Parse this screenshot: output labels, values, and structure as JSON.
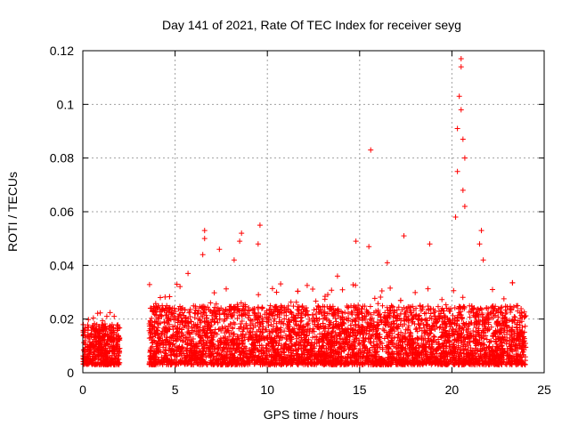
{
  "chart_data": {
    "type": "scatter",
    "title": "Day 141 of 2021, Rate Of TEC Index for receiver seyg",
    "xlabel": "GPS time / hours",
    "ylabel": "ROTI / TECUs",
    "xlim": [
      0,
      25
    ],
    "ylim": [
      0,
      0.12
    ],
    "xticks": [
      0,
      5,
      10,
      15,
      20,
      25
    ],
    "xtick_labels": [
      "0",
      "5",
      "10",
      "15",
      "20",
      "25"
    ],
    "yticks": [
      0,
      0.02,
      0.04,
      0.06,
      0.08,
      0.1,
      0.12
    ],
    "ytick_labels": [
      "0",
      "0.02",
      "0.04",
      "0.06",
      "0.08",
      "0.1",
      "0.12"
    ],
    "grid": true,
    "marker": "+",
    "color": "#ff0000",
    "data_gap_hours": [
      2.0,
      3.6
    ],
    "segments": [
      {
        "x_start": 0.0,
        "x_end": 2.0,
        "band": [
          0.003,
          0.018
        ]
      },
      {
        "x_start": 3.6,
        "x_end": 24.0,
        "band": [
          0.003,
          0.025
        ]
      }
    ],
    "notable_points": [
      {
        "x": 0.1,
        "y": 0.015
      },
      {
        "x": 1.3,
        "y": 0.021
      },
      {
        "x": 1.7,
        "y": 0.021
      },
      {
        "x": 4.2,
        "y": 0.028
      },
      {
        "x": 5.1,
        "y": 0.033
      },
      {
        "x": 5.7,
        "y": 0.037
      },
      {
        "x": 6.6,
        "y": 0.053
      },
      {
        "x": 6.6,
        "y": 0.05
      },
      {
        "x": 6.5,
        "y": 0.044
      },
      {
        "x": 7.4,
        "y": 0.046
      },
      {
        "x": 8.6,
        "y": 0.052
      },
      {
        "x": 8.5,
        "y": 0.049
      },
      {
        "x": 8.2,
        "y": 0.042
      },
      {
        "x": 9.6,
        "y": 0.055
      },
      {
        "x": 9.5,
        "y": 0.048
      },
      {
        "x": 10.5,
        "y": 0.03
      },
      {
        "x": 13.8,
        "y": 0.036
      },
      {
        "x": 14.8,
        "y": 0.049
      },
      {
        "x": 15.6,
        "y": 0.083
      },
      {
        "x": 15.5,
        "y": 0.047
      },
      {
        "x": 16.5,
        "y": 0.041
      },
      {
        "x": 17.4,
        "y": 0.051
      },
      {
        "x": 18.8,
        "y": 0.048
      },
      {
        "x": 20.5,
        "y": 0.117
      },
      {
        "x": 20.5,
        "y": 0.114
      },
      {
        "x": 20.4,
        "y": 0.103
      },
      {
        "x": 20.5,
        "y": 0.098
      },
      {
        "x": 20.3,
        "y": 0.091
      },
      {
        "x": 20.6,
        "y": 0.087
      },
      {
        "x": 20.7,
        "y": 0.08
      },
      {
        "x": 20.3,
        "y": 0.075
      },
      {
        "x": 20.6,
        "y": 0.068
      },
      {
        "x": 20.7,
        "y": 0.062
      },
      {
        "x": 20.2,
        "y": 0.058
      },
      {
        "x": 21.6,
        "y": 0.053
      },
      {
        "x": 21.5,
        "y": 0.048
      },
      {
        "x": 21.7,
        "y": 0.042
      },
      {
        "x": 22.2,
        "y": 0.031
      },
      {
        "x": 23.5,
        "y": 0.017
      }
    ]
  }
}
